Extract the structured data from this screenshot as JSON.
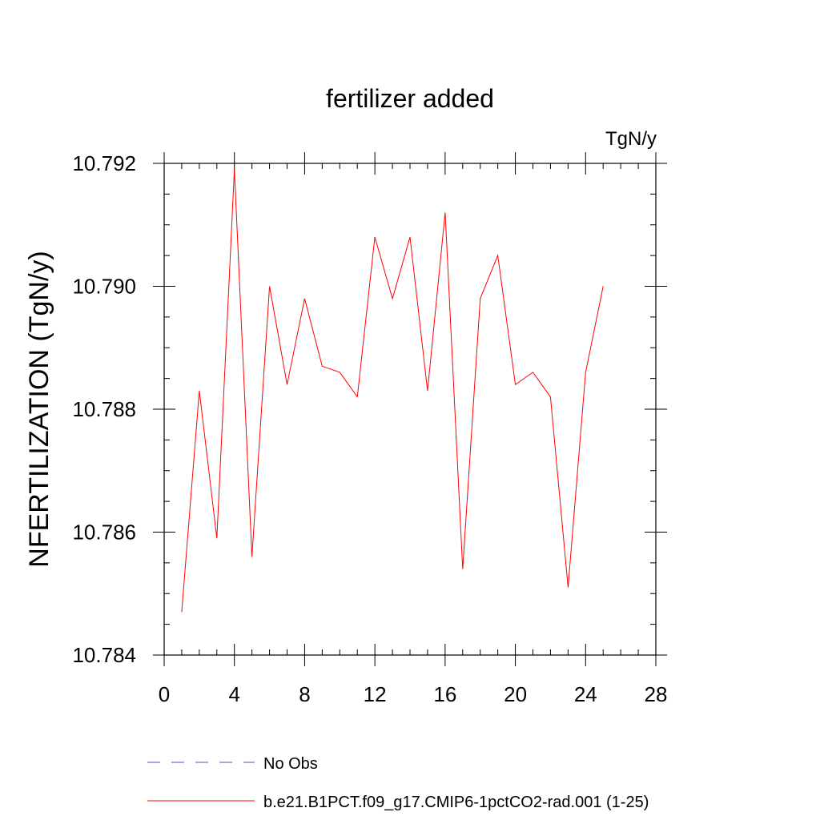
{
  "chart_data": {
    "type": "line",
    "title": "fertilizer added",
    "units": "TgN/y",
    "ylabel": "NFERTILIZATION  (TgN/y)",
    "xlabel": "",
    "xlim": [
      0,
      28
    ],
    "ylim": [
      10.784,
      10.792
    ],
    "xticks": [
      0,
      4,
      8,
      12,
      16,
      20,
      24,
      28
    ],
    "xtick_labels": [
      "0",
      "4",
      "8",
      "12",
      "16",
      "20",
      "24",
      "28"
    ],
    "yticks": [
      10.784,
      10.786,
      10.788,
      10.79,
      10.792
    ],
    "ytick_labels": [
      "10.784",
      "10.786",
      "10.788",
      "10.790",
      "10.792"
    ],
    "grid": false,
    "legend_position": "bottom",
    "series": [
      {
        "name": "b.e21.B1PCT.f09_g17.CMIP6-1pctCO2-rad.001 (1-25)",
        "color": "#ff0000",
        "style": "solid",
        "x": [
          1,
          2,
          3,
          4,
          5,
          6,
          7,
          8,
          9,
          10,
          11,
          12,
          13,
          14,
          15,
          16,
          17,
          18,
          19,
          20,
          21,
          22,
          23,
          24,
          25
        ],
        "y": [
          10.7847,
          10.7883,
          10.7859,
          10.7919,
          10.7856,
          10.79,
          10.7884,
          10.7898,
          10.7887,
          10.7886,
          10.7882,
          10.7908,
          10.7898,
          10.7908,
          10.7883,
          10.7912,
          10.7854,
          10.7898,
          10.7905,
          10.7884,
          10.7886,
          10.7882,
          10.7851,
          10.7886,
          10.79
        ]
      }
    ],
    "legend": [
      {
        "label": "No Obs",
        "color": "#5050cc",
        "style": "dashed"
      },
      {
        "label": "b.e21.B1PCT.f09_g17.CMIP6-1pctCO2-rad.001 (1-25)",
        "color": "#ff0000",
        "style": "solid"
      }
    ]
  }
}
